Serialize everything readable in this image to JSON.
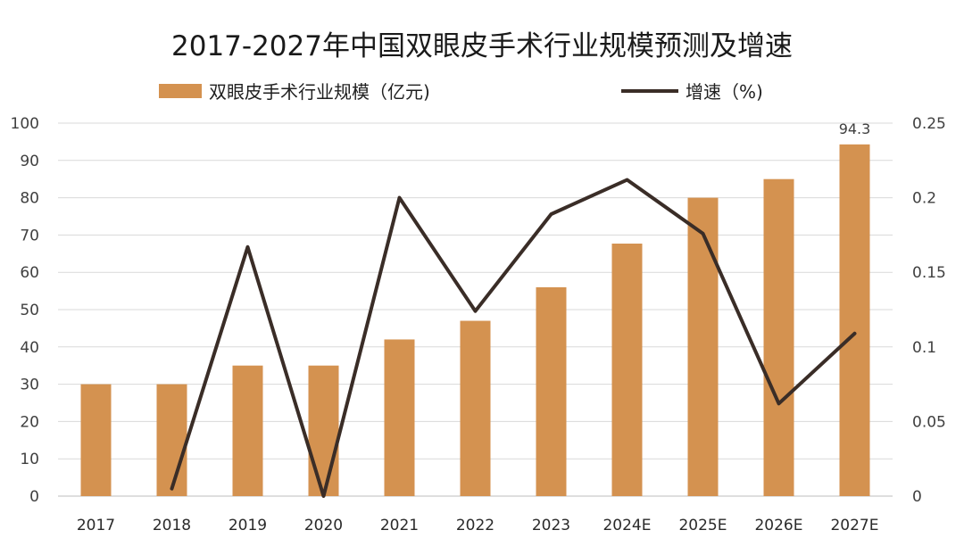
{
  "chart_data": {
    "type": "bar",
    "title": "2017-2027年中国双眼皮手术行业规模预测及增速",
    "categories": [
      "2017",
      "2018",
      "2019",
      "2020",
      "2021",
      "2022",
      "2023",
      "2024E",
      "2025E",
      "2026E",
      "2027E"
    ],
    "series": [
      {
        "name": "双眼皮手术行业规模（亿元)",
        "type": "bar",
        "axis": "left",
        "color": "#D49250",
        "values": [
          30,
          30,
          35,
          35,
          42,
          47,
          56,
          67.7,
          80,
          85,
          94.3
        ]
      },
      {
        "name": "增速（%)",
        "type": "line",
        "axis": "right",
        "color": "#3a2d27",
        "values": [
          null,
          0.005,
          0.167,
          0.0,
          0.2,
          0.124,
          0.189,
          0.212,
          0.176,
          0.062,
          0.109
        ]
      }
    ],
    "y_left": {
      "min": 0,
      "max": 100,
      "ticks": [
        "0",
        "10",
        "20",
        "30",
        "40",
        "50",
        "60",
        "70",
        "80",
        "90",
        "100"
      ]
    },
    "y_right": {
      "min": 0,
      "max": 0.25,
      "ticks": [
        "0",
        "0.05",
        "0.1",
        "0.15",
        "0.2",
        "0.25"
      ]
    },
    "data_labels": [
      {
        "category": "2027E",
        "text": "94.3"
      }
    ],
    "grid": true,
    "legend_position": "top"
  }
}
